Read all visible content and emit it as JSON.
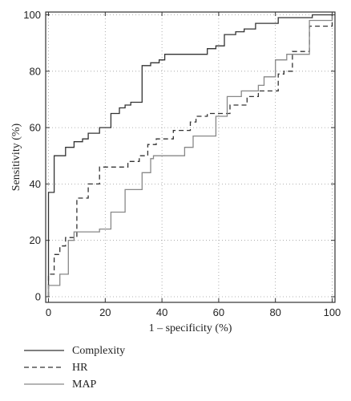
{
  "chart_data": {
    "type": "line",
    "xlabel": "1 – specificity (%)",
    "ylabel": "Sensitivity (%)",
    "xlim": [
      -1,
      101
    ],
    "ylim": [
      -2,
      101
    ],
    "xticks": [
      0,
      20,
      40,
      60,
      80,
      100
    ],
    "yticks": [
      0,
      20,
      40,
      60,
      80,
      100
    ],
    "grid": true,
    "legend_position": "below",
    "series": [
      {
        "name": "Complexity",
        "color": "#333333",
        "dash": "solid",
        "x": [
          0,
          0,
          2,
          2,
          6,
          6,
          9,
          9,
          12,
          12,
          14,
          14,
          18,
          18,
          22,
          22,
          25,
          25,
          27,
          27,
          29,
          29,
          33,
          33,
          36,
          36,
          39,
          39,
          41,
          41,
          56,
          56,
          59,
          59,
          62,
          62,
          66,
          66,
          69,
          69,
          73,
          73,
          79,
          79,
          81,
          81,
          93,
          93,
          97,
          97,
          100
        ],
        "y": [
          0,
          37,
          37,
          50,
          50,
          53,
          53,
          55,
          55,
          56,
          56,
          58,
          58,
          60,
          60,
          65,
          65,
          67,
          67,
          68,
          68,
          69,
          69,
          82,
          82,
          83,
          83,
          84,
          84,
          86,
          86,
          88,
          88,
          89,
          89,
          93,
          93,
          94,
          94,
          95,
          95,
          97,
          97,
          97,
          97,
          99,
          99,
          100,
          100,
          100,
          100
        ]
      },
      {
        "name": "HR",
        "color": "#333333",
        "dash": "dashed",
        "x": [
          0,
          0,
          2,
          2,
          4,
          4,
          6,
          6,
          10,
          10,
          14,
          14,
          18,
          18,
          28,
          28,
          32,
          32,
          35,
          35,
          38,
          38,
          44,
          44,
          48,
          48,
          50,
          50,
          52,
          52,
          56,
          56,
          60,
          60,
          64,
          64,
          70,
          70,
          74,
          74,
          81,
          81,
          83,
          83,
          86,
          86,
          92,
          92,
          97,
          97,
          100,
          100
        ],
        "y": [
          0,
          8,
          8,
          15,
          15,
          18,
          18,
          21,
          21,
          35,
          35,
          40,
          40,
          46,
          46,
          48,
          48,
          50,
          50,
          54,
          54,
          56,
          56,
          59,
          59,
          59,
          59,
          62,
          62,
          64,
          64,
          65,
          65,
          65,
          65,
          68,
          68,
          71,
          71,
          73,
          73,
          79,
          79,
          80,
          80,
          87,
          87,
          96,
          96,
          96,
          96,
          100
        ]
      },
      {
        "name": "MAP",
        "color": "#888888",
        "dash": "solid",
        "x": [
          0,
          0,
          2,
          2,
          4,
          4,
          7,
          7,
          9,
          9,
          14,
          14,
          18,
          18,
          22,
          22,
          27,
          27,
          32,
          32,
          33,
          33,
          36,
          36,
          37,
          37,
          48,
          48,
          51,
          51,
          59,
          59,
          63,
          63,
          68,
          68,
          74,
          74,
          76,
          76,
          80,
          80,
          84,
          84,
          87,
          87,
          92,
          92,
          95,
          95,
          100,
          100
        ],
        "y": [
          0,
          4,
          4,
          4,
          4,
          8,
          8,
          20,
          20,
          23,
          23,
          23,
          23,
          24,
          24,
          30,
          30,
          38,
          38,
          38,
          38,
          44,
          44,
          49,
          49,
          50,
          50,
          53,
          53,
          57,
          57,
          64,
          64,
          71,
          71,
          73,
          73,
          75,
          75,
          78,
          78,
          84,
          84,
          86,
          86,
          86,
          86,
          98,
          98,
          98,
          98,
          100
        ]
      }
    ]
  }
}
